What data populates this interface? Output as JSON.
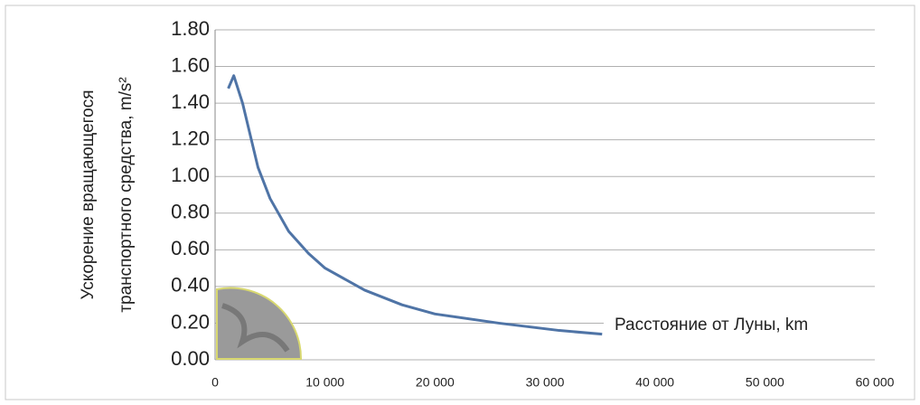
{
  "chart_data": {
    "type": "line",
    "y_label": [
      "Ускорение вращающегося",
      "транспортного средства, m/s²"
    ],
    "x_label": "Расстояние от Луны, km",
    "x": [
      1200,
      1700,
      2500,
      3900,
      5000,
      6700,
      8500,
      10000,
      13600,
      17000,
      20000,
      25800,
      31300,
      35200
    ],
    "series": [
      {
        "color": "#4f74a6",
        "values": [
          1.48,
          1.55,
          1.4,
          1.05,
          0.88,
          0.7,
          0.58,
          0.5,
          0.38,
          0.3,
          0.25,
          0.2,
          0.16,
          0.14
        ]
      }
    ],
    "xlim": [
      0,
      60000
    ],
    "xticks": [
      0,
      {
        "value": 10000,
        "label": "10 000"
      },
      {
        "value": 20000,
        "label": "20 000"
      },
      {
        "value": 30000,
        "label": "30 000"
      },
      {
        "value": 40000,
        "label": "40 000"
      },
      {
        "value": 50000,
        "label": "50 000"
      },
      {
        "value": 60000,
        "label": "60 000"
      }
    ],
    "ylim": [
      0,
      1.8
    ],
    "yticks": [
      {
        "value": 0,
        "label": "0.00"
      },
      {
        "value": 0.2,
        "label": "0.20"
      },
      {
        "value": 0.4,
        "label": "0.40"
      },
      {
        "value": 0.6,
        "label": "0.60"
      },
      {
        "value": 0.8,
        "label": "0.80"
      },
      {
        "value": 1.0,
        "label": "1.00"
      },
      {
        "value": 1.2,
        "label": "1.20"
      },
      {
        "value": 1.4,
        "label": "1.40"
      },
      {
        "value": 1.6,
        "label": "1.60"
      },
      {
        "value": 1.8,
        "label": "1.80"
      }
    ],
    "grid": true
  }
}
